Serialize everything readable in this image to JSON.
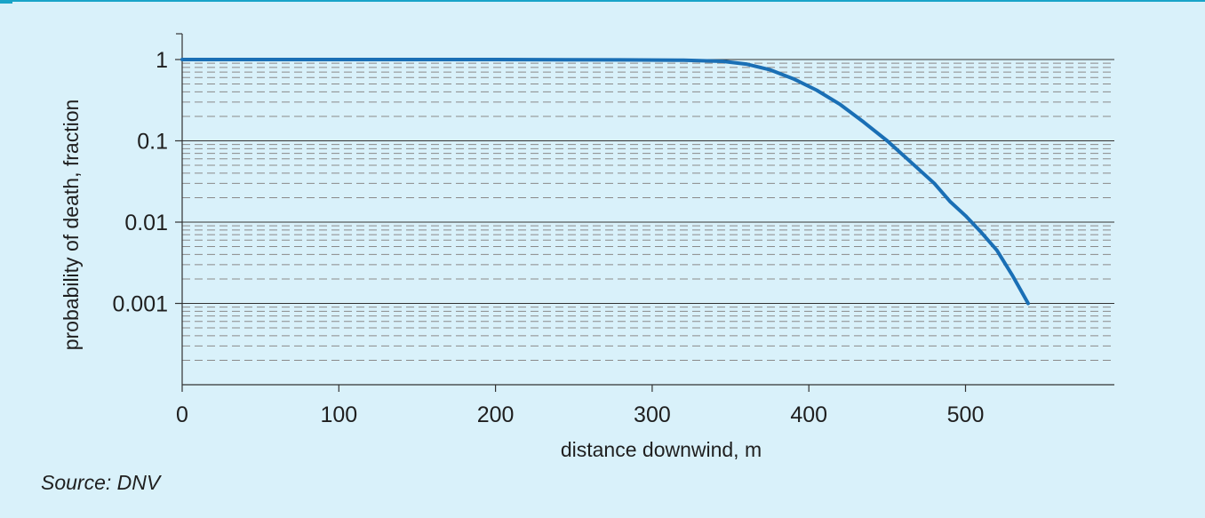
{
  "chart_data": {
    "type": "line",
    "title": "",
    "xlabel": "distance downwind, m",
    "ylabel": "probability of death, fraction",
    "x_ticks": [
      "0",
      "100",
      "200",
      "300",
      "400",
      "500"
    ],
    "y_ticks": [
      "1",
      "0.1",
      "0.01",
      "0.001"
    ],
    "xlim": [
      0,
      595
    ],
    "ylim": [
      0.0001,
      2
    ],
    "y_scale": "log",
    "grid": true,
    "series": [
      {
        "color": "#1a6fb5",
        "x": [
          0,
          100,
          200,
          280,
          320,
          345,
          360,
          375,
          390,
          405,
          420,
          435,
          450,
          465,
          480,
          490,
          500,
          510,
          520,
          530,
          540
        ],
        "y": [
          1,
          1,
          1,
          0.99,
          0.98,
          0.95,
          0.88,
          0.75,
          0.58,
          0.42,
          0.28,
          0.17,
          0.1,
          0.055,
          0.03,
          0.018,
          0.012,
          0.0075,
          0.0045,
          0.0022,
          0.001
        ]
      }
    ]
  },
  "footer": {
    "source": "Source: DNV"
  }
}
